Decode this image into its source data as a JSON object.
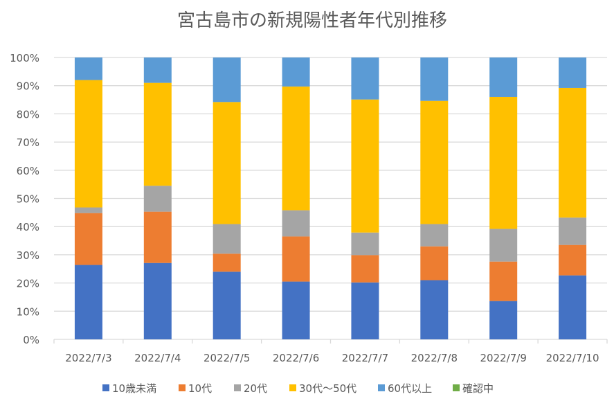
{
  "chart_data": {
    "type": "bar",
    "stacked": "percent",
    "title": "宮古島市の新規陽性者年代別推移",
    "xlabel": "",
    "ylabel": "",
    "ylim": [
      0,
      100
    ],
    "yticks": [
      "0%",
      "10%",
      "20%",
      "30%",
      "40%",
      "50%",
      "60%",
      "70%",
      "80%",
      "90%",
      "100%"
    ],
    "grid": true,
    "legend_position": "bottom",
    "categories": [
      "2022/7/3",
      "2022/7/4",
      "2022/7/5",
      "2022/7/6",
      "2022/7/7",
      "2022/7/8",
      "2022/7/9",
      "2022/7/10"
    ],
    "series": [
      {
        "name": "10歳未満",
        "color": "#4472C4",
        "values": [
          26.4,
          27.1,
          24.0,
          20.5,
          20.2,
          21.0,
          13.6,
          22.7
        ]
      },
      {
        "name": "10代",
        "color": "#ED7D31",
        "values": [
          18.4,
          18.2,
          6.4,
          16.0,
          9.7,
          12.0,
          14.0,
          10.8
        ]
      },
      {
        "name": "20代",
        "color": "#A5A5A5",
        "values": [
          2.0,
          9.2,
          10.5,
          9.3,
          8.0,
          7.9,
          11.6,
          9.7
        ]
      },
      {
        "name": "30代～50代",
        "color": "#FFC000",
        "values": [
          45.2,
          36.5,
          43.3,
          43.9,
          47.2,
          43.7,
          46.8,
          46.0
        ]
      },
      {
        "name": "60代以上",
        "color": "#5B9BD5",
        "values": [
          8.0,
          9.0,
          15.8,
          10.3,
          14.9,
          15.4,
          14.0,
          10.8
        ]
      },
      {
        "name": "確認中",
        "color": "#70AD47",
        "values": [
          0,
          0,
          0,
          0,
          0,
          0,
          0,
          0
        ]
      }
    ]
  }
}
